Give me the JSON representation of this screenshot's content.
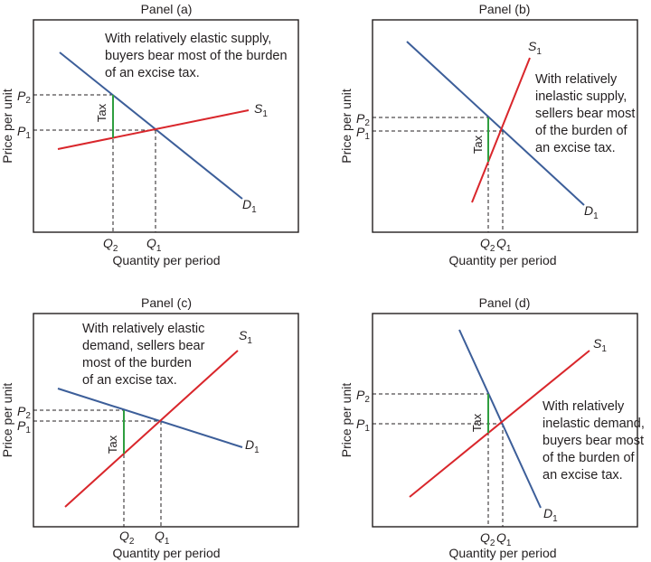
{
  "colors": {
    "demand": "#3c5e99",
    "supply": "#d9262b",
    "tax": "#2f9e3f",
    "frame": "#231f20",
    "dashed": "#231f20"
  },
  "axis": {
    "x_label": "Quantity per period",
    "y_label": "Price per unit"
  },
  "mark_labels": {
    "demand": "D",
    "supply": "S",
    "price": "P",
    "quantity": "Q",
    "sub_1": "1",
    "sub_2": "2",
    "tax": "Tax"
  },
  "panels": [
    {
      "title": "Panel (a)",
      "annotation": [
        "With relatively elastic supply,",
        "buyers bear most of the burden",
        "of an excise tax."
      ]
    },
    {
      "title": "Panel (b)",
      "annotation": [
        "With relatively",
        "inelastic supply,",
        "sellers bear most",
        "of the burden of",
        "an excise tax."
      ]
    },
    {
      "title": "Panel (c)",
      "annotation": [
        "With relatively elastic",
        "demand, sellers bear",
        "most of the burden",
        "of an excise tax."
      ]
    },
    {
      "title": "Panel (d)",
      "annotation": [
        "With relatively",
        "inelastic demand,",
        "buyers bear most",
        "of the burden of",
        "an excise tax."
      ]
    }
  ]
}
